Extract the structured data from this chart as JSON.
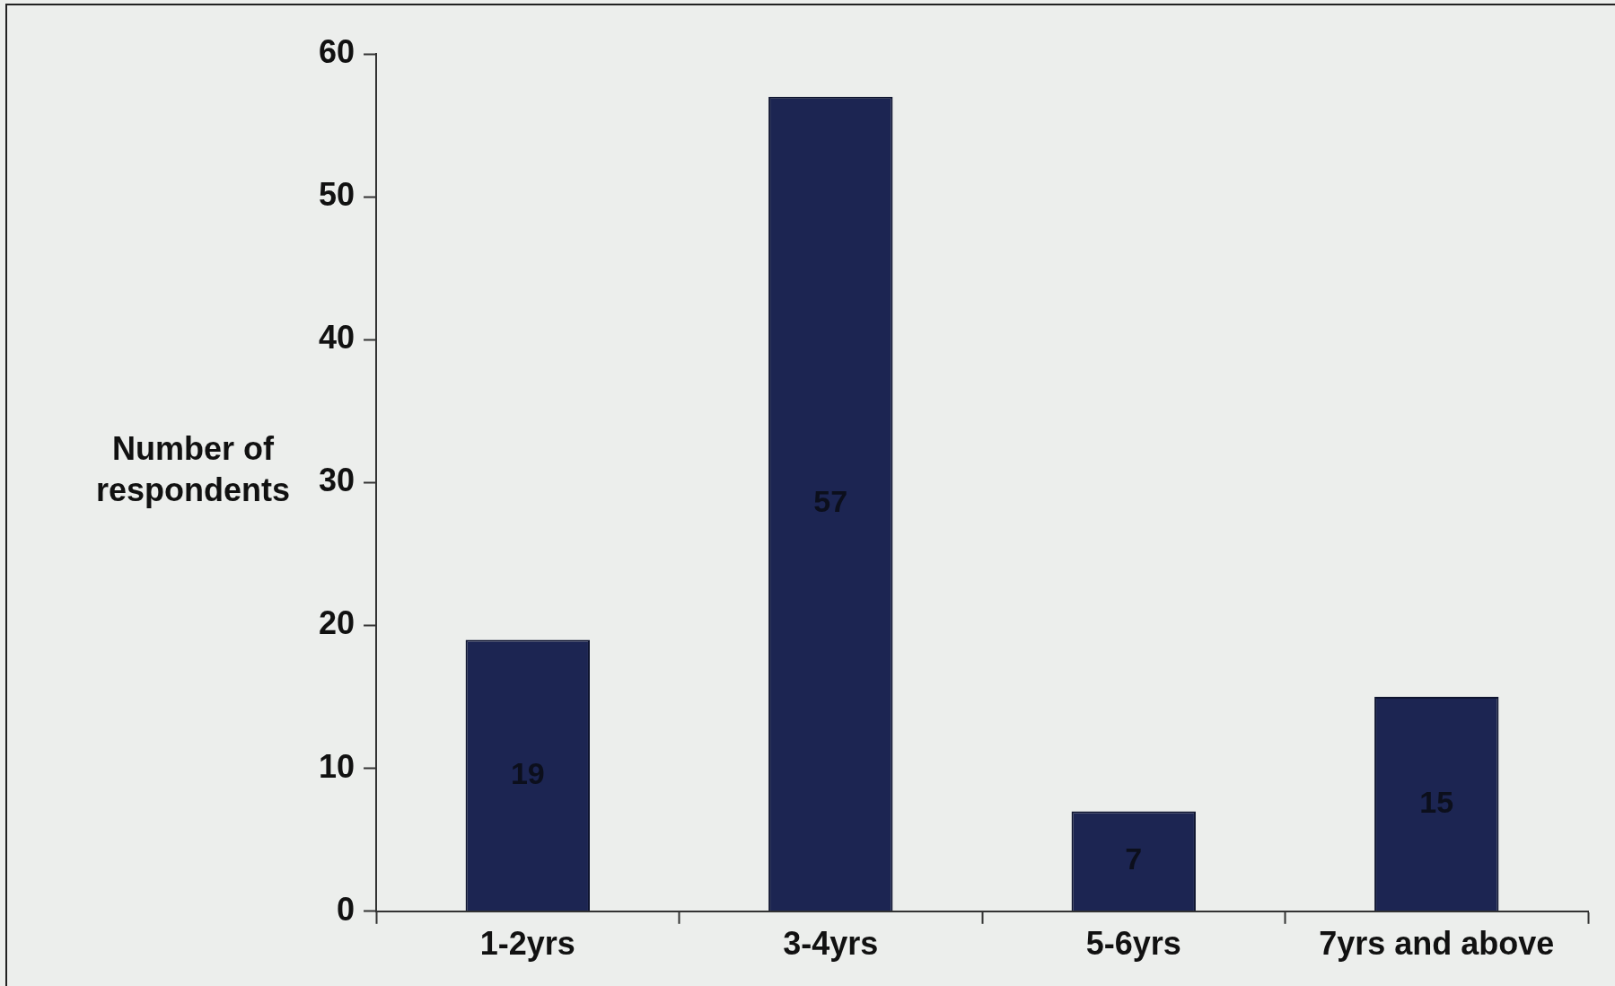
{
  "chart_data": {
    "type": "bar",
    "ylabel": "Number of respondents",
    "categories": [
      "1-2yrs",
      "3-4yrs",
      "5-6yrs",
      "7yrs and above"
    ],
    "values": [
      19,
      57,
      7,
      15
    ],
    "color": "#1c2552",
    "ylim": [
      0,
      60
    ],
    "yticks": [
      0,
      10,
      20,
      30,
      40,
      50,
      60
    ],
    "grid": false,
    "data_labels": true
  }
}
